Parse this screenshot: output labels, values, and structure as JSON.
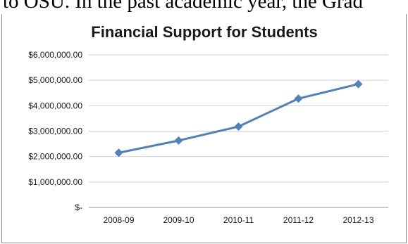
{
  "page": {
    "top_text": "to OSU. In the past academic year, the Grad"
  },
  "chart_data": {
    "type": "line",
    "title": "Financial Support for Students",
    "xlabel": "",
    "ylabel": "",
    "categories": [
      "2008-09",
      "2009-10",
      "2010-11",
      "2011-12",
      "2012-13"
    ],
    "series": [
      {
        "values": [
          2150000,
          2630000,
          3180000,
          4280000,
          4850000
        ]
      }
    ],
    "ylim": [
      0,
      6000000
    ],
    "yticks": [
      0,
      1000000,
      2000000,
      3000000,
      4000000,
      5000000,
      6000000
    ],
    "ytick_labels": [
      "$-",
      "$1,000,000.00",
      "$2,000,000.00",
      "$3,000,000.00",
      "$4,000,000.00",
      "$5,000,000.00",
      "$6,000,000.00"
    ],
    "grid": true,
    "legend": "none",
    "line_color": "#4F81BD",
    "marker": "diamond"
  }
}
